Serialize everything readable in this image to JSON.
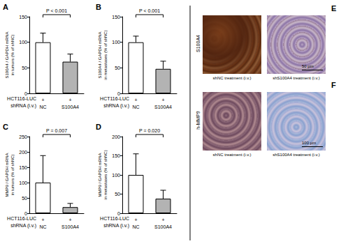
{
  "chart_data": [
    {
      "type": "bar",
      "panel": "A",
      "y_label": "S100A4 / GAPDH mRNA\nin tumors (% of shNC)",
      "categories": [
        "NC",
        "S100A4"
      ],
      "row_labels": [
        "HCT116-LUC",
        "shRNA (i.v.)"
      ],
      "cells": [
        "+",
        "+"
      ],
      "values": [
        100,
        62
      ],
      "errors": [
        18,
        15
      ],
      "colors": [
        "#ffffff",
        "#b3b3b3"
      ],
      "ylim": [
        0,
        150
      ],
      "yticks": [
        0,
        50,
        100,
        150
      ],
      "p_value": "P < 0.001"
    },
    {
      "type": "bar",
      "panel": "B",
      "y_label": "S100A4 / GAPDH mRNA\nin metastases (% of shNC)",
      "categories": [
        "NC",
        "S100A4"
      ],
      "row_labels": [
        "HCT116-LUC",
        "shRNA (i.v.)"
      ],
      "cells": [
        "+",
        "+"
      ],
      "values": [
        100,
        48
      ],
      "errors": [
        12,
        15
      ],
      "colors": [
        "#ffffff",
        "#b3b3b3"
      ],
      "ylim": [
        0,
        150
      ],
      "yticks": [
        0,
        50,
        100,
        150
      ],
      "p_value": "P < 0.001"
    },
    {
      "type": "bar",
      "panel": "C",
      "y_label": "MMP9 / GAPDH mRNA\nin tumors (% of shNC)",
      "categories": [
        "NC",
        "S100A4"
      ],
      "row_labels": [
        "HCT116-LUC",
        "shRNA (i.v.)"
      ],
      "cells": [
        "+",
        "+"
      ],
      "values": [
        100,
        20
      ],
      "errors": [
        88,
        12
      ],
      "colors": [
        "#ffffff",
        "#b3b3b3"
      ],
      "ylim": [
        0,
        250
      ],
      "yticks": [
        0,
        50,
        100,
        150,
        200,
        250
      ],
      "p_value": "P = 0.007"
    },
    {
      "type": "bar",
      "panel": "D",
      "y_label": "MMP9 / GAPDH mRNA\nin metastases (% of shNC)",
      "categories": [
        "NC",
        "S100A4"
      ],
      "row_labels": [
        "HCT116-LUC",
        "shRNA (i.v.)"
      ],
      "cells": [
        "+",
        "+"
      ],
      "values": [
        100,
        38
      ],
      "errors": [
        55,
        22
      ],
      "colors": [
        "#ffffff",
        "#b3b3b3"
      ],
      "ylim": [
        0,
        200
      ],
      "yticks": [
        0,
        50,
        100,
        150,
        200
      ],
      "p_value": "P = 0.020"
    }
  ],
  "image_panels": [
    {
      "panel": "E",
      "label": "S100A4",
      "images": [
        {
          "caption": "shNC treatment (i.v.)"
        },
        {
          "caption": "shS100A4 treatment (i.v.)",
          "scale_bar": "50 µm"
        }
      ]
    },
    {
      "panel": "F",
      "label": "h-MMP9",
      "images": [
        {
          "caption": "shNC treatment (i.v.)"
        },
        {
          "caption": "shS100A4 treatment (i.v.)",
          "scale_bar": "100 µm"
        }
      ]
    }
  ]
}
